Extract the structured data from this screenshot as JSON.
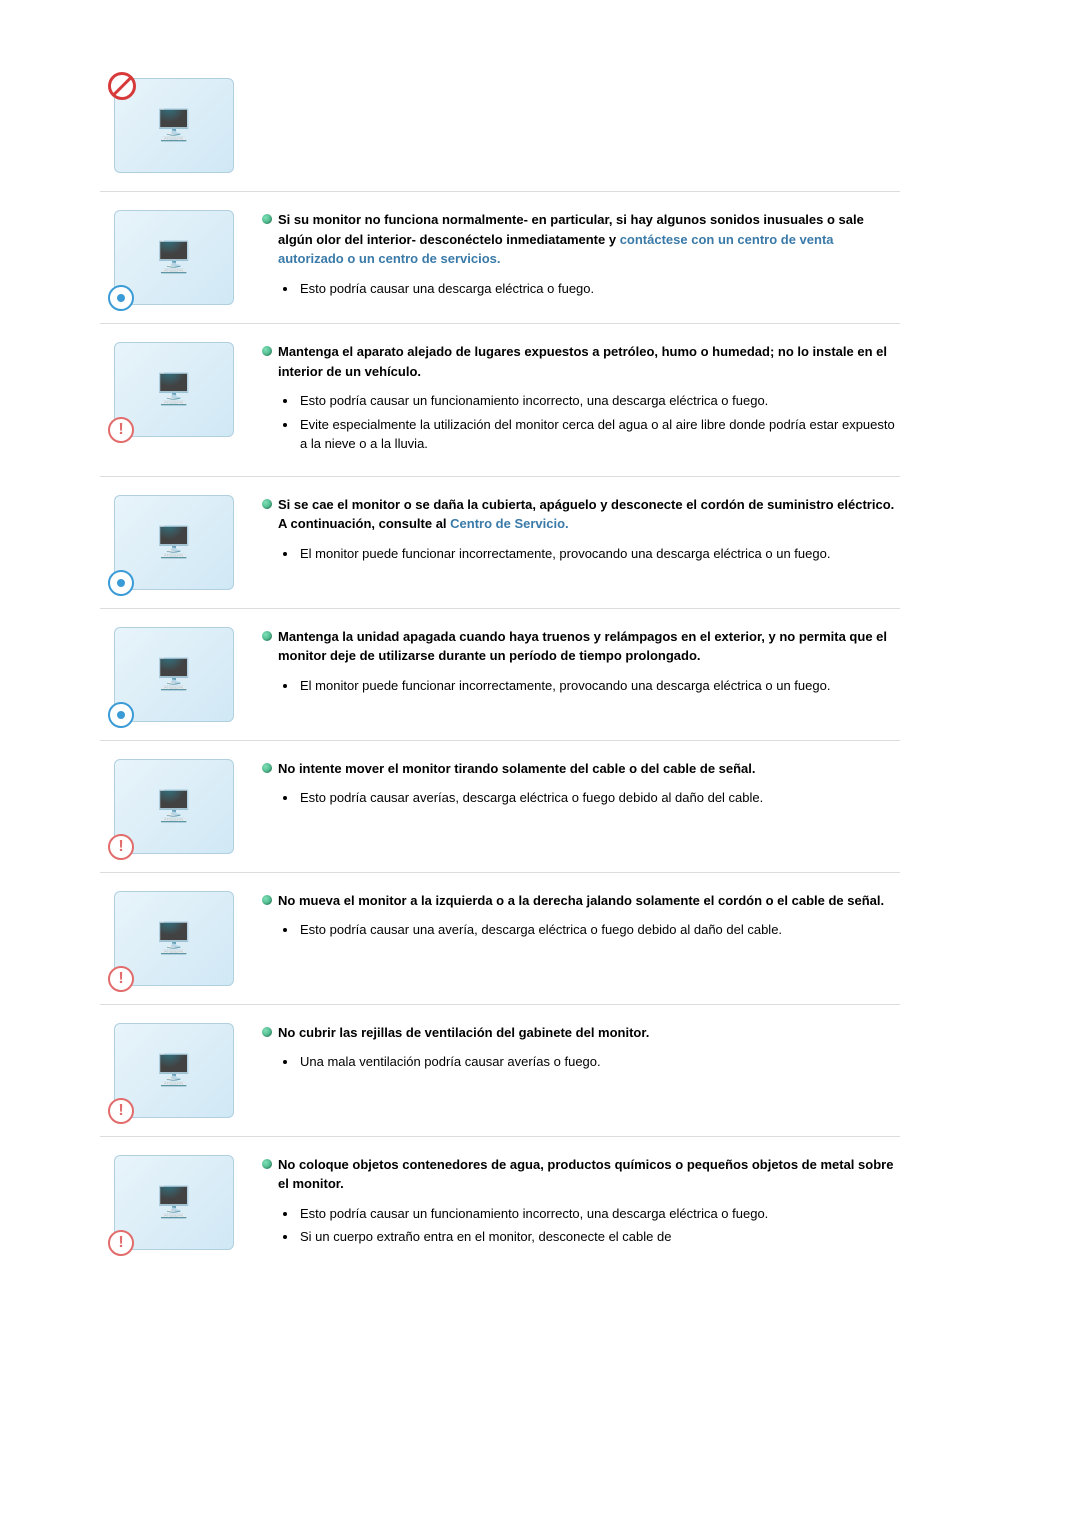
{
  "colors": {
    "text": "#000000",
    "link": "#3a7aa8",
    "divider": "#dcdcdc",
    "warn_red": "#e26b6b",
    "warn_blue": "#3a9bd6",
    "prohibit": "#d63a3a",
    "icon_bg_start": "#e8f4fa",
    "icon_bg_end": "#d0e8f5"
  },
  "typography": {
    "font_family": "Arial",
    "body_size_pt": 10,
    "bold_weight": 700
  },
  "sections": {
    "s0": {
      "heading_prefix": "",
      "heading_link": "",
      "heading_suffix": "",
      "items": []
    },
    "s1": {
      "heading_prefix": "Si su monitor no funciona normalmente- en particular, si hay algunos sonidos inusuales o sale algún olor del interior- desconéctelo inmediatamente y ",
      "heading_link": "contáctese con un centro de venta autorizado o un centro de servicios.",
      "heading_suffix": "",
      "items": {
        "0": "Esto podría causar una descarga eléctrica o fuego."
      }
    },
    "s2": {
      "heading_prefix": "Mantenga el aparato alejado de lugares expuestos a petróleo, humo o humedad; no lo instale en el interior de un vehículo.",
      "heading_link": "",
      "heading_suffix": "",
      "items": {
        "0": "Esto podría causar un funcionamiento incorrecto, una descarga eléctrica o fuego.",
        "1": "Evite especialmente la utilización del monitor cerca del agua o al aire libre donde podría estar expuesto a la nieve o a la lluvia."
      }
    },
    "s3": {
      "heading_prefix": "Si se cae el monitor o se daña la cubierta, apáguelo y desconecte el cordón de suministro eléctrico. A continuación, consulte al ",
      "heading_link": "Centro de Servicio.",
      "heading_suffix": "",
      "items": {
        "0": "El monitor puede funcionar incorrectamente, provocando una descarga eléctrica o un fuego."
      }
    },
    "s4": {
      "heading_prefix": "Mantenga la unidad apagada cuando haya truenos y relámpagos en el exterior, y no permita que el monitor deje de utilizarse durante un período de tiempo prolongado.",
      "heading_link": "",
      "heading_suffix": "",
      "items": {
        "0": "El monitor puede funcionar incorrectamente, provocando una descarga eléctrica o un fuego."
      }
    },
    "s5": {
      "heading_prefix": "No intente mover el monitor tirando solamente del cable o del cable de señal.",
      "heading_link": "",
      "heading_suffix": "",
      "items": {
        "0": "Esto podría causar averías, descarga eléctrica o fuego debido al daño del cable."
      }
    },
    "s6": {
      "heading_prefix": "No mueva el monitor a la izquierda o a la derecha jalando solamente el cordón o el cable de señal.",
      "heading_link": "",
      "heading_suffix": "",
      "items": {
        "0": "Esto podría causar una avería, descarga eléctrica o fuego debido al daño del cable."
      }
    },
    "s7": {
      "heading_prefix": "No cubrir las rejillas de ventilación del gabinete del monitor.",
      "heading_link": "",
      "heading_suffix": "",
      "items": {
        "0": "Una mala ventilación podría causar averías o fuego."
      }
    },
    "s8": {
      "heading_prefix": "No coloque objetos contenedores de agua, productos químicos o pequeños objetos de metal sobre el monitor.",
      "heading_link": "",
      "heading_suffix": "",
      "items": {
        "0": "Esto podría causar un funcionamiento incorrecto, una descarga eléctrica o fuego.",
        "1": "Si un cuerpo extraño entra en el monitor, desconecte el cable de"
      }
    }
  },
  "icons": {
    "s0": "🖥️",
    "s1": "🖥️",
    "s2": "🖥️",
    "s3": "🖥️",
    "s4": "🖥️",
    "s5": "🖥️",
    "s6": "🖥️",
    "s7": "🖥️",
    "s8": "🖥️"
  }
}
